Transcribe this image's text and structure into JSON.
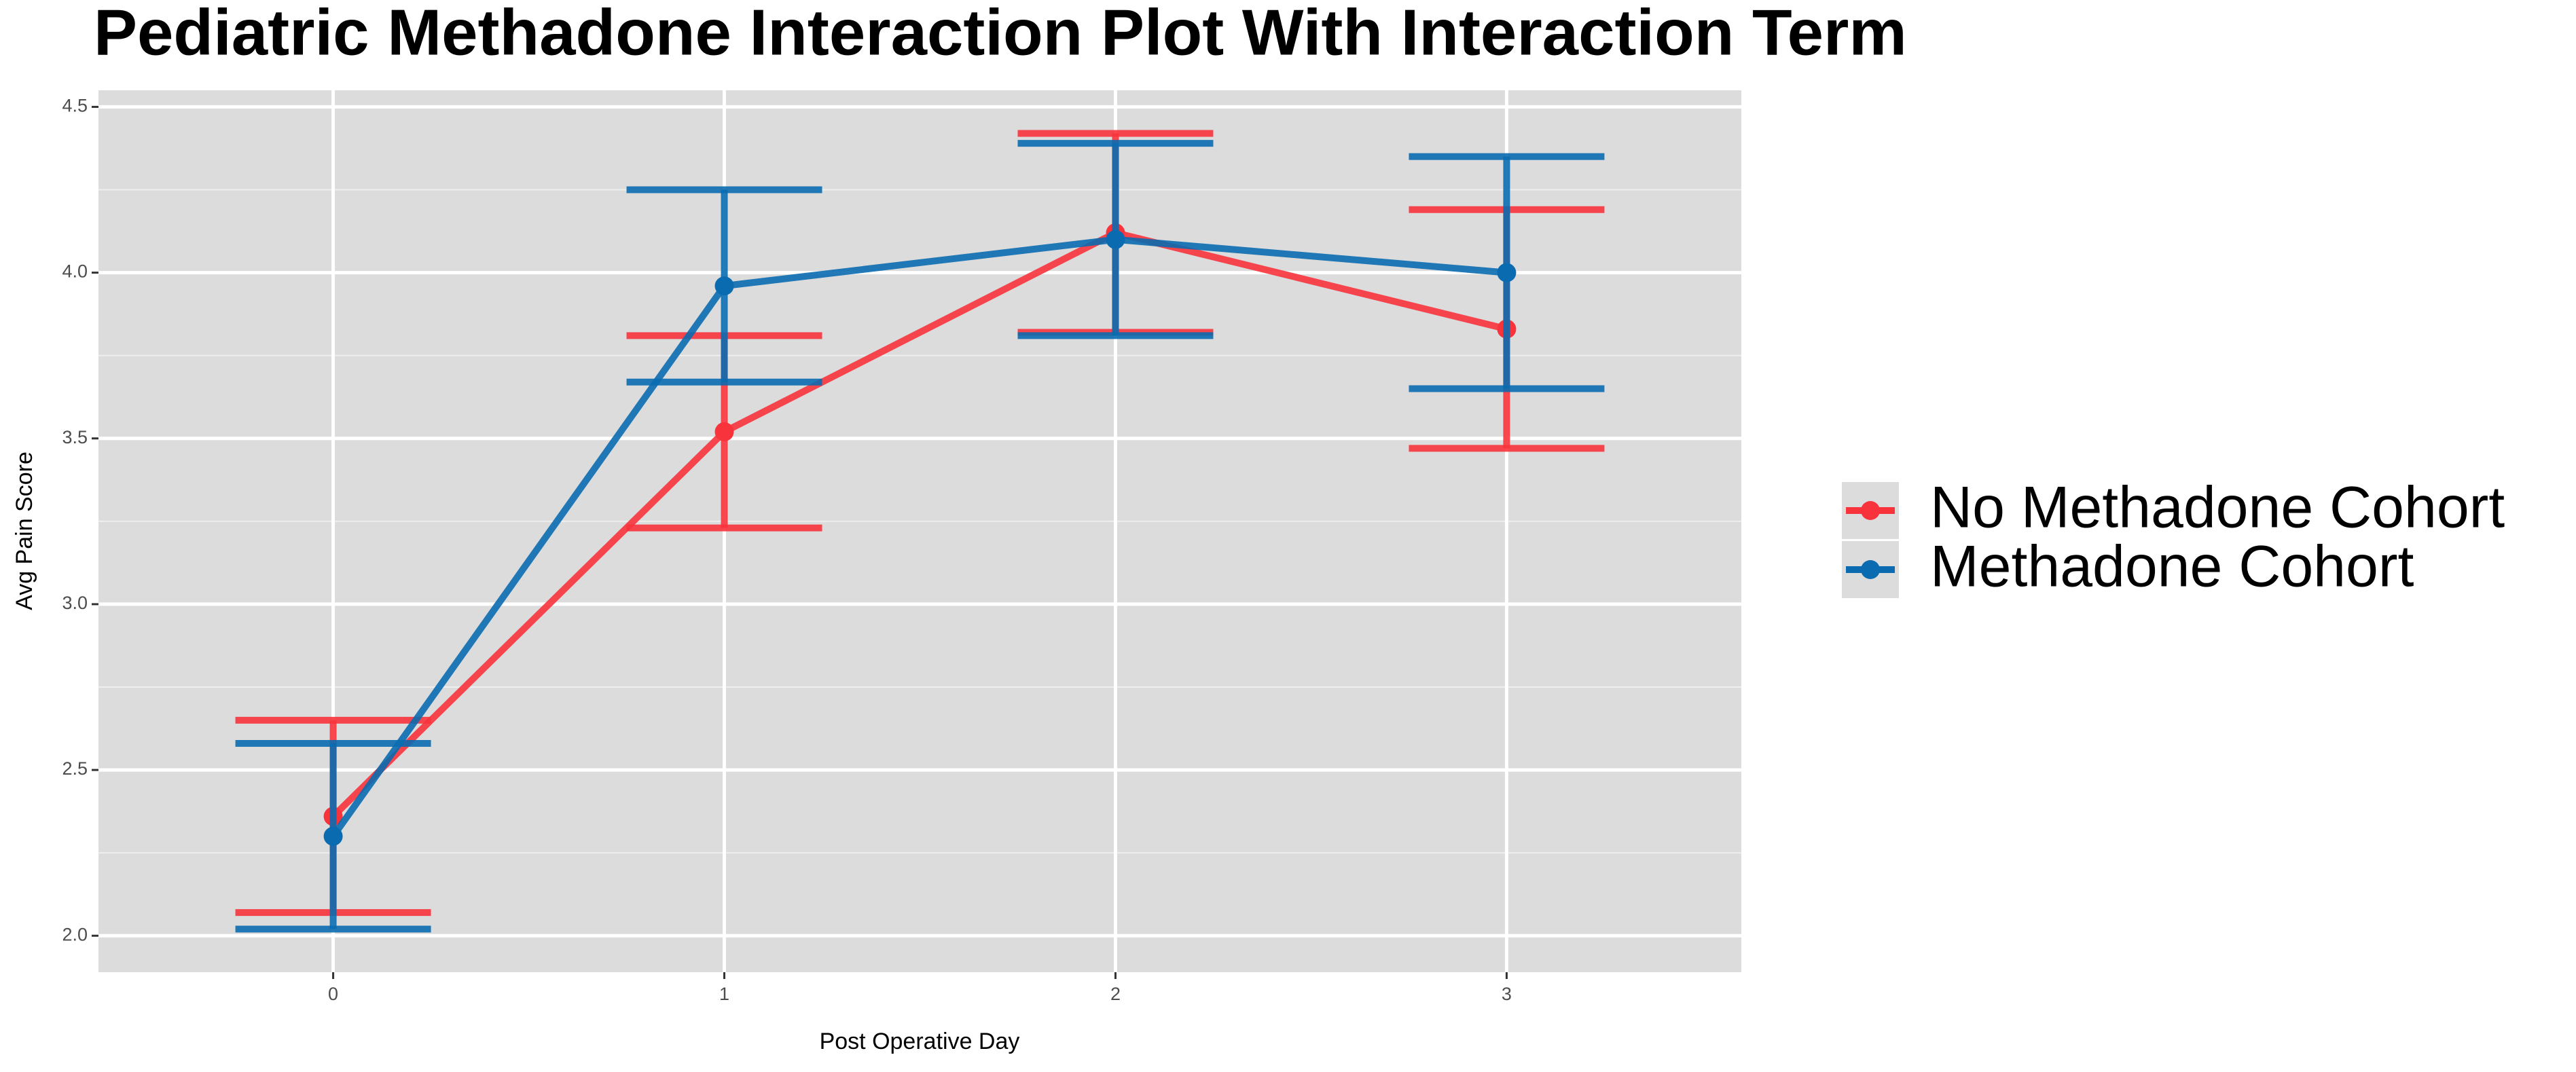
{
  "chart_data": {
    "type": "line",
    "title": "Pediatric Methadone Interaction Plot With Interaction Term",
    "x_label": "Post Operative Day",
    "y_label": "Avg Pain Score",
    "x": [
      0,
      1,
      2,
      3
    ],
    "xlim": [
      -0.6,
      3.6
    ],
    "xticks": [
      0,
      1,
      2,
      3
    ],
    "ylim": [
      1.89,
      4.55
    ],
    "yticks": [
      {
        "value": 2,
        "label": "2.0"
      },
      2.5,
      {
        "value": 3,
        "label": "3.0"
      },
      3.5,
      {
        "value": 4,
        "label": "4.0"
      },
      4.5
    ],
    "minor_yticks": [
      2.25,
      2.75,
      3.25,
      3.75,
      4.25
    ],
    "grid": true,
    "legend": "right",
    "series": [
      {
        "name": "No Methadone Cohort",
        "color": "#f8333c",
        "values": [
          2.36,
          3.52,
          4.12,
          3.83
        ],
        "errors": [
          0.29,
          0.29,
          0.3,
          0.36
        ]
      },
      {
        "name": "Methadone Cohort",
        "color": "#0a6bb0",
        "values": [
          2.3,
          3.96,
          4.1,
          4.0
        ],
        "errors": [
          0.28,
          0.29,
          0.29,
          0.35
        ]
      }
    ]
  }
}
